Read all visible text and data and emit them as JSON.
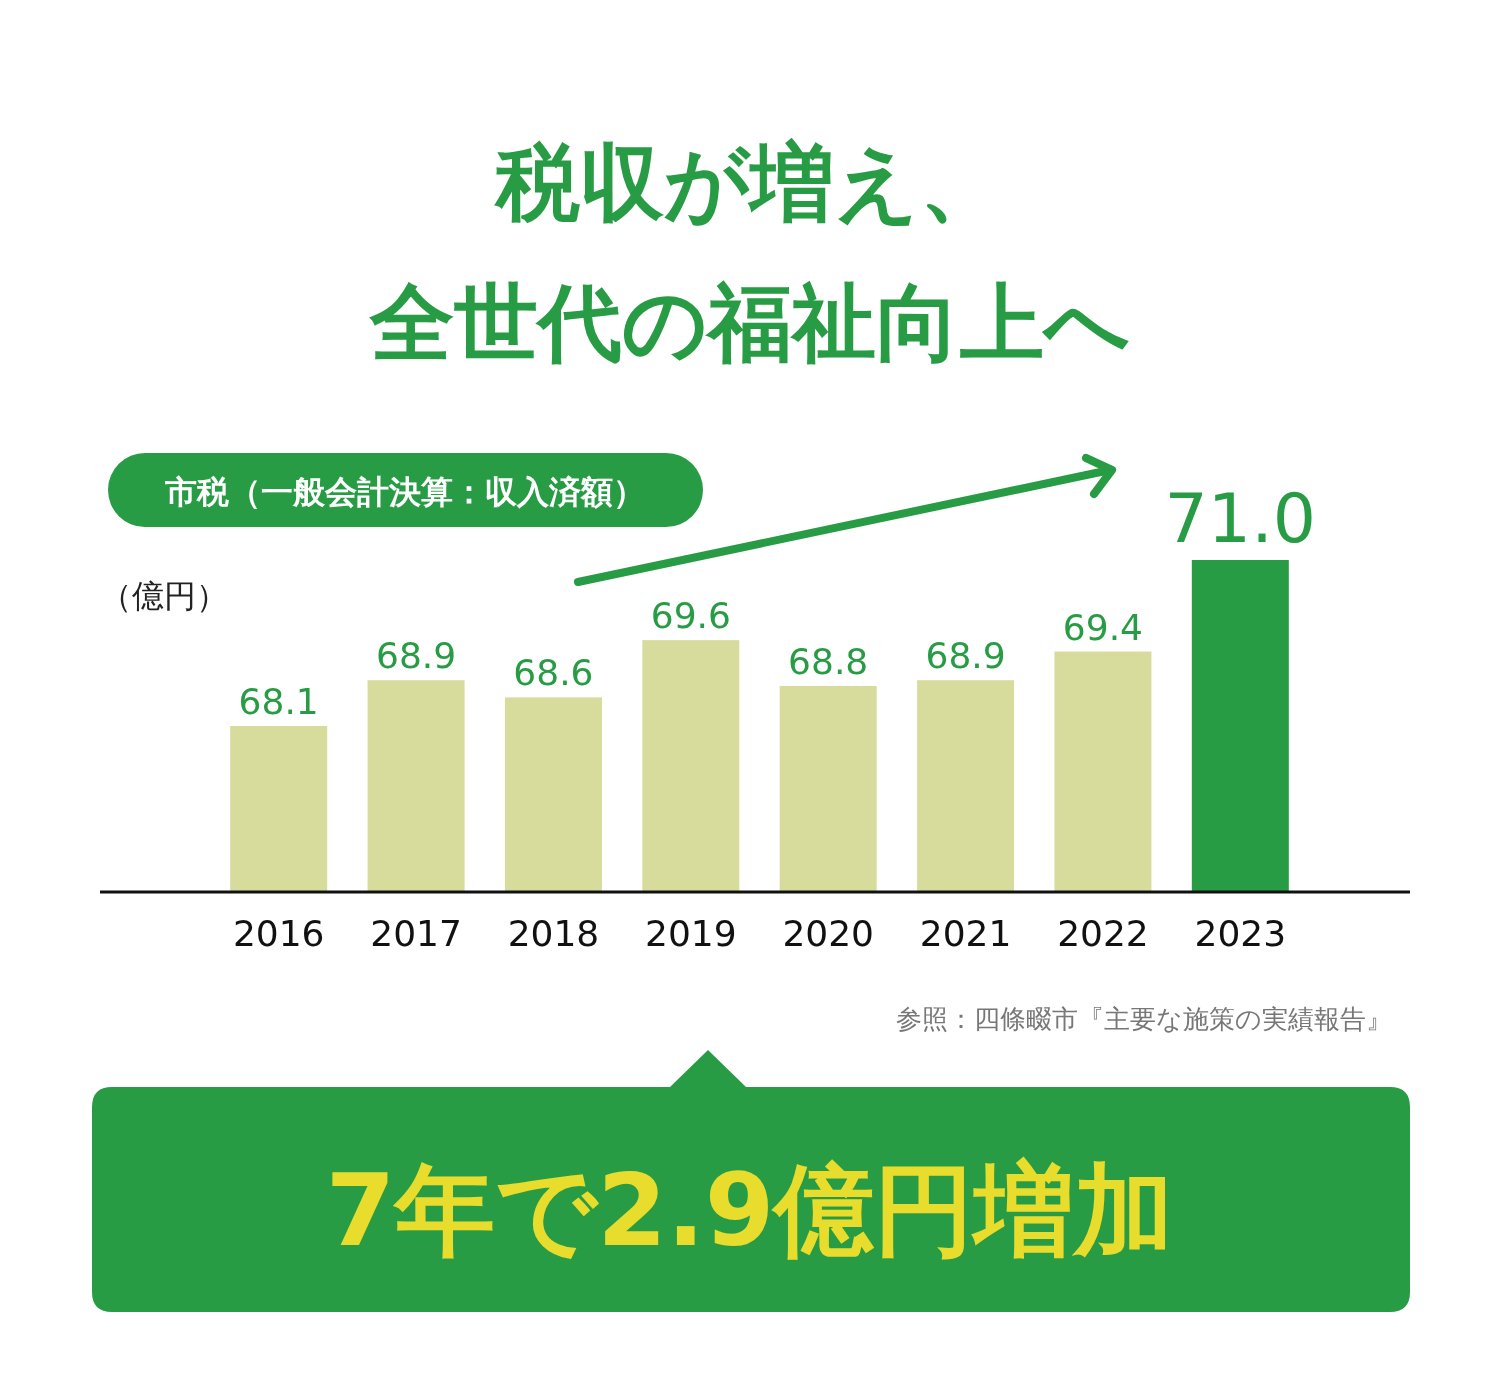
{
  "chart_data": {
    "type": "bar",
    "title": "税収が増え、全世代の福祉向上へ",
    "subtitle": "市税（一般会計決算：収入済額）",
    "ylabel": "（億円）",
    "categories": [
      "2016",
      "2017",
      "2018",
      "2019",
      "2020",
      "2021",
      "2022",
      "2023"
    ],
    "values": [
      68.1,
      68.9,
      68.6,
      69.6,
      68.8,
      68.9,
      69.4,
      71.0
    ],
    "colors": [
      "#d7dc9c",
      "#d7dc9c",
      "#d7dc9c",
      "#d7dc9c",
      "#d7dc9c",
      "#d7dc9c",
      "#d7dc9c",
      "#279c44"
    ],
    "value_labels": [
      "68.1",
      "68.9",
      "68.6",
      "69.6",
      "68.8",
      "68.9",
      "69.4",
      "71.0"
    ],
    "ylim": [
      65.2,
      71.0
    ],
    "annotations": [
      "参照：四條畷市『主要な施策の実績報告』",
      "7年で2.9億円増加"
    ]
  }
}
